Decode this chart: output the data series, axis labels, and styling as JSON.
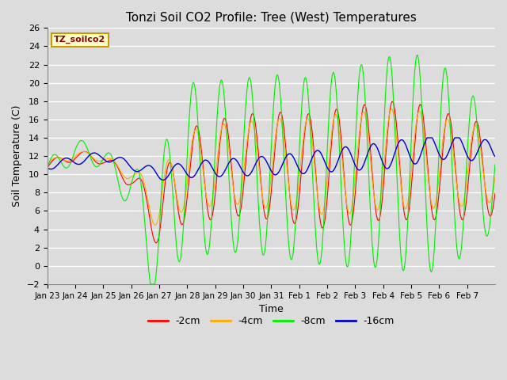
{
  "title": "Tonzi Soil CO2 Profile: Tree (West) Temperatures",
  "xlabel": "Time",
  "ylabel": "Soil Temperature (C)",
  "ylim": [
    -2,
    26
  ],
  "yticks": [
    -2,
    0,
    2,
    4,
    6,
    8,
    10,
    12,
    14,
    16,
    18,
    20,
    22,
    24,
    26
  ],
  "bg_color": "#dcdcdc",
  "plot_bg_color": "#dcdcdc",
  "grid_color": "#ffffff",
  "legend_label": "TZ_soilco2",
  "legend_bg": "#ffffcc",
  "legend_edge": "#cc9900",
  "series_colors": [
    "#ff0000",
    "#ffaa00",
    "#00ee00",
    "#0000cc"
  ],
  "series_labels": [
    "-2cm",
    "-4cm",
    "-8cm",
    "-16cm"
  ],
  "x_tick_labels": [
    "Jan 23",
    "Jan 24",
    "Jan 25",
    "Jan 26",
    "Jan 27",
    "Jan 28",
    "Jan 29",
    "Jan 30",
    "Jan 31",
    "Feb 1",
    "Feb 2",
    "Feb 3",
    "Feb 4",
    "Feb 5",
    "Feb 6",
    "Feb 7"
  ],
  "n_points_per_day": 48
}
